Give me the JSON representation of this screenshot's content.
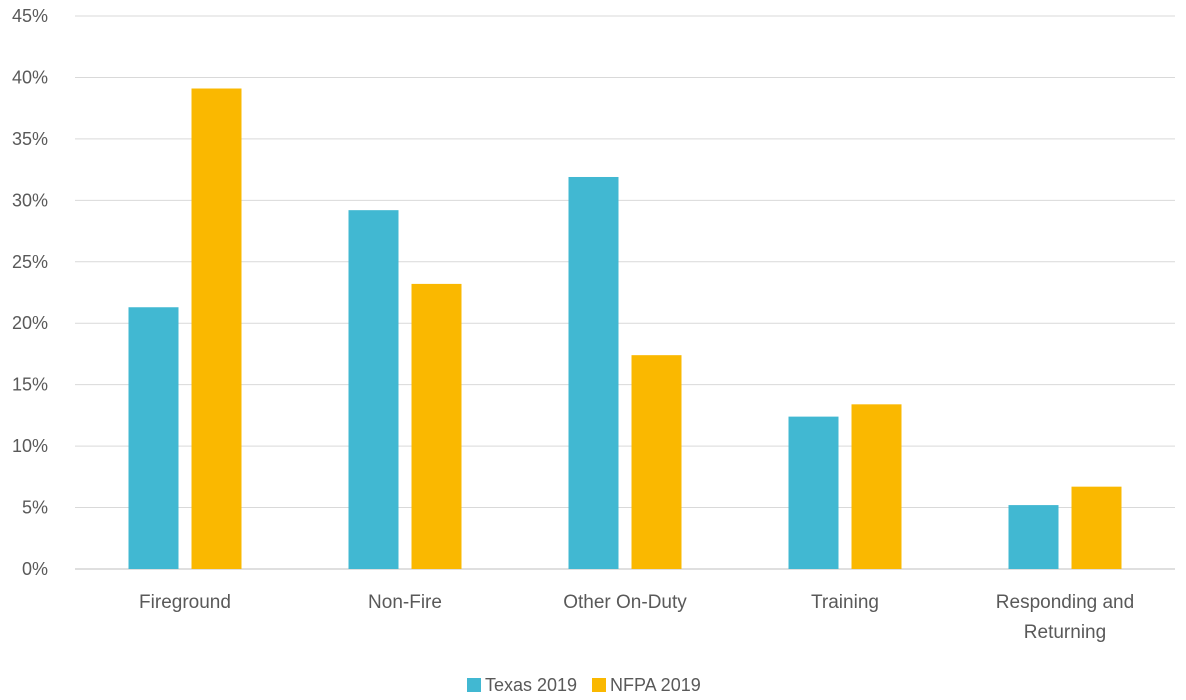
{
  "chart_data": {
    "type": "bar",
    "categories": [
      "Fireground",
      "Non-Fire",
      "Other On-Duty",
      "Training",
      "Responding and Returning"
    ],
    "category_label_lines": [
      [
        "Fireground"
      ],
      [
        "Non-Fire"
      ],
      [
        "Other On-Duty"
      ],
      [
        "Training"
      ],
      [
        "Responding and",
        "Returning"
      ]
    ],
    "series": [
      {
        "name": "Texas 2019",
        "color": "#41B8D2",
        "values": [
          21.3,
          29.2,
          31.9,
          12.4,
          5.2
        ]
      },
      {
        "name": "NFPA 2019",
        "color": "#FAB800",
        "values": [
          39.1,
          23.2,
          17.4,
          13.4,
          6.7
        ]
      }
    ],
    "ylim": [
      0,
      45
    ],
    "yticks": [
      0,
      5,
      10,
      15,
      20,
      25,
      30,
      35,
      40,
      45
    ],
    "ytick_labels": [
      "0%",
      "5%",
      "10%",
      "15%",
      "20%",
      "25%",
      "30%",
      "35%",
      "40%",
      "45%"
    ],
    "grid": true,
    "legend_position": "bottom-center",
    "title": "",
    "xlabel": "",
    "ylabel": ""
  }
}
